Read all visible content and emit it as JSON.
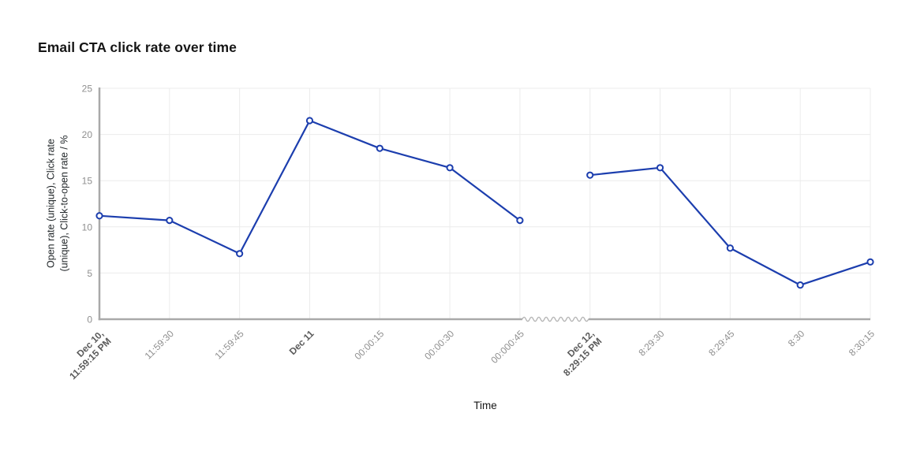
{
  "header": {
    "title": "Email CTA click rate over time"
  },
  "chart": {
    "x_axis_title": "Time",
    "y_axis_label_lines": [
      "Open rate (unique), Click rate",
      "(unique), Click-to-open rate / %"
    ]
  },
  "chart_data": {
    "type": "line",
    "title": "Email CTA click rate over time",
    "xlabel": "Time",
    "ylabel": "Open rate (unique), Click rate (unique), Click-to-open rate / %",
    "categories": [
      "Dec 10,\n11:59:15 PM",
      "11:59:30",
      "11:59:45",
      "Dec 11",
      "00:00:15",
      "00:00:30",
      "00:000:45",
      "Dec 12,\n8:29:15 PM",
      "8:29:30",
      "8:29:45",
      "8:30",
      "8:30:15"
    ],
    "values": [
      11.2,
      10.7,
      7.1,
      21.5,
      18.5,
      16.4,
      10.7,
      15.6,
      16.4,
      7.7,
      3.7,
      6.2
    ],
    "bold_category_indices": [
      0,
      3,
      7
    ],
    "axis_break_after_index": 6,
    "y_ticks": [
      0,
      5,
      10,
      15,
      20,
      25
    ],
    "ylim": [
      0,
      25
    ],
    "grid": true,
    "legend": "none",
    "marker": "open-circle",
    "line_color": "#1c3eae",
    "colors": {
      "grid": "#ececec",
      "axis": "#a9a9a9",
      "axis_break": "#b5b5b5",
      "tick": "#8f8f8f",
      "tick_bold": "#5a5a5a",
      "title_text": "#161616",
      "axis_title_text": "#161616",
      "y_label_text": "#22272a",
      "marker_fill": "#ffffff",
      "background": "#ffffff"
    }
  }
}
